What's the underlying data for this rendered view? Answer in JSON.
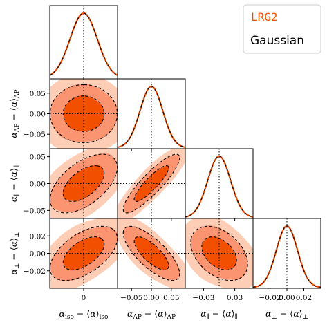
{
  "chart_data": {
    "type": "corner",
    "params": [
      {
        "name": "iso",
        "label": "α_iso − ⟨α⟩_iso",
        "sigma": 0.012,
        "range": [
          -0.03,
          0.03
        ],
        "ticks": [
          0
        ],
        "tick_labels": [
          "0"
        ]
      },
      {
        "name": "AP",
        "label": "α_AP − ⟨α⟩_AP",
        "sigma": 0.0285,
        "range": [
          -0.085,
          0.085
        ],
        "ticks": [
          -0.05,
          0,
          0.05
        ],
        "tick_labels": [
          "−0.05",
          "0.00",
          "0.05"
        ]
      },
      {
        "name": "par",
        "label": "α_∥ − ⟨α⟩_∥",
        "sigma": 0.022,
        "range": [
          -0.065,
          0.065
        ],
        "ticks": [
          -0.03,
          0.03
        ],
        "tick_labels": [
          "−0.03",
          "0.03"
        ]
      },
      {
        "name": "perp",
        "label": "α_⊥ − ⟨α⟩_⊥",
        "sigma": 0.0125,
        "range": [
          -0.04,
          0.04
        ],
        "ticks": [
          -0.02,
          0,
          0.02
        ],
        "tick_labels": [
          "−0.02",
          "0.00",
          "0.02"
        ]
      }
    ],
    "y_tick_labels": {
      "AP": [
        "−0.05",
        "0.00",
        "0.05"
      ],
      "par": [
        "−0.05",
        "0.00",
        "0.05"
      ],
      "perp": [
        "−0.02",
        "0.00",
        "0.02"
      ]
    },
    "y_ticks": {
      "AP": [
        -0.05,
        0,
        0.05
      ],
      "par": [
        -0.05,
        0,
        0.05
      ],
      "perp": [
        -0.02,
        0,
        0.02
      ]
    },
    "correlations": [
      {
        "pair": [
          "iso",
          "AP"
        ],
        "rho": 0.0
      },
      {
        "pair": [
          "iso",
          "par"
        ],
        "rho": 0.55
      },
      {
        "pair": [
          "AP",
          "par"
        ],
        "rho": 0.88
      },
      {
        "pair": [
          "iso",
          "perp"
        ],
        "rho": 0.55
      },
      {
        "pair": [
          "AP",
          "perp"
        ],
        "rho": -0.75
      },
      {
        "pair": [
          "par",
          "perp"
        ],
        "rho": -0.4
      }
    ],
    "series": [
      {
        "name": "LRG2",
        "color": "#f25000",
        "contour_colors": [
          "#f25000",
          "#fb9470",
          "#fdcdb5"
        ]
      },
      {
        "name": "Gaussian",
        "color": "#000000",
        "line_style": "dashed"
      }
    ],
    "reference_line": {
      "value": 0,
      "style": "dotted"
    },
    "legend_position": "top-right"
  }
}
